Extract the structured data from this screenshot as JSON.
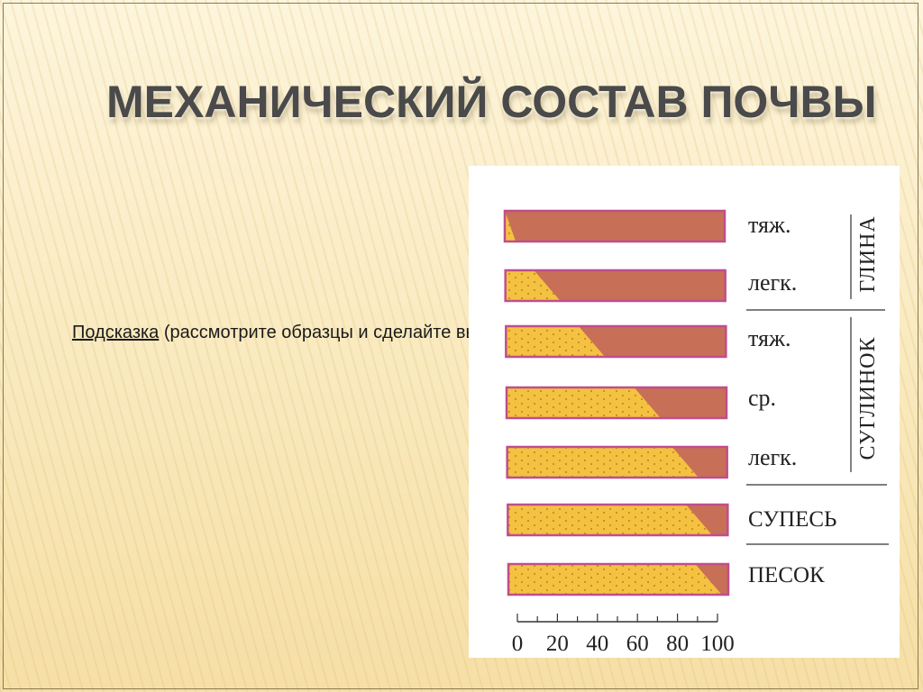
{
  "title": "МЕХАНИЧЕСКИЙ СОСТАВ ПОЧВЫ",
  "hint": {
    "keyword": "Подсказка",
    "text": " (рассмотрите  образцы и сделайте вывод)"
  },
  "colors": {
    "sand": "#f4c240",
    "clay": "#c86f57",
    "edge": "#c04e8c",
    "dots": "#c48a2a"
  },
  "groups": [
    {
      "label": "ГЛИНА"
    },
    {
      "label": "СУГЛИНОК"
    }
  ],
  "samples": [
    {
      "label": "тяж.",
      "sand_percent": 5
    },
    {
      "label": "легк.",
      "sand_percent": 25
    },
    {
      "label": "тяж.",
      "sand_percent": 45
    },
    {
      "label": "ср.",
      "sand_percent": 70
    },
    {
      "label": "легк.",
      "sand_percent": 87
    },
    {
      "label": "СУПЕСЬ",
      "sand_percent": 93
    },
    {
      "label": "ПЕСОК",
      "sand_percent": 97
    }
  ],
  "scale": {
    "ticks": [
      "0",
      "20",
      "40",
      "60",
      "80",
      "100"
    ]
  }
}
